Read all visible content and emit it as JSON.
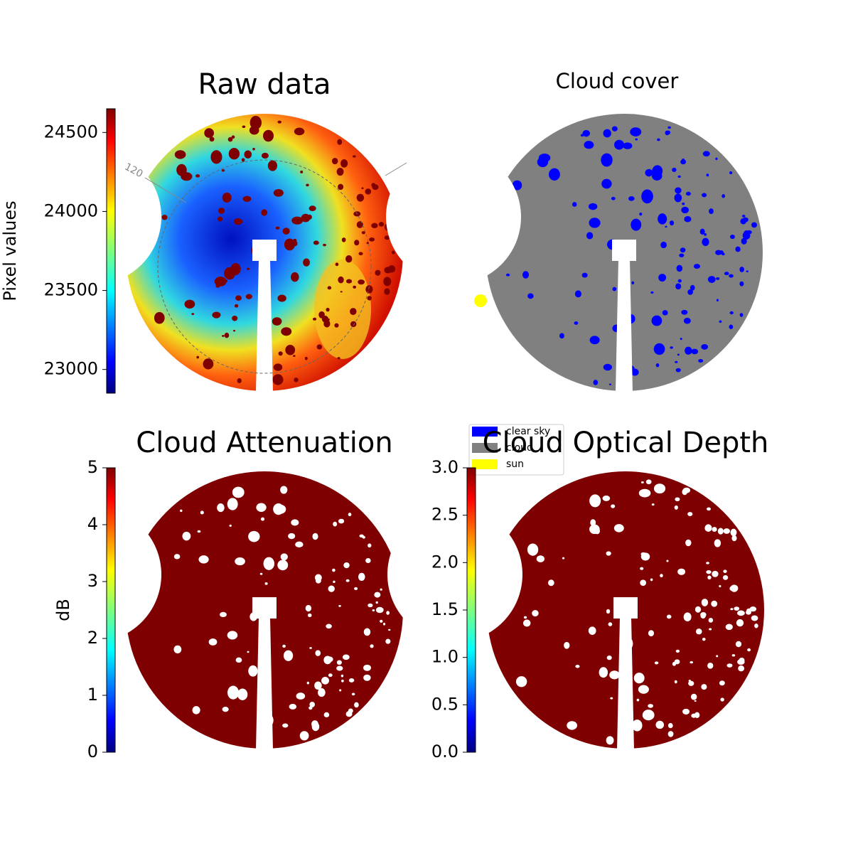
{
  "chart_data": [
    {
      "type": "image",
      "title": "Raw data",
      "colorbar_label": "Pixel values",
      "colormap": "jet",
      "ylim": [
        22850,
        24650
      ],
      "yticks": [
        23000,
        23500,
        24000,
        24500
      ],
      "annotations": [
        "120"
      ]
    },
    {
      "type": "image",
      "title": "Cloud cover",
      "legend": {
        "categories": [
          "clear sky",
          "cloud",
          "sun"
        ],
        "colors": [
          "#0000ff",
          "#808080",
          "#ffff00"
        ]
      }
    },
    {
      "type": "image",
      "title": "Cloud Attenuation",
      "colorbar_label": "dB",
      "colormap": "jet",
      "ylim": [
        0,
        5
      ],
      "yticks": [
        0,
        1,
        2,
        3,
        4,
        5
      ]
    },
    {
      "type": "image",
      "title": "Cloud Optical Depth",
      "colormap": "jet",
      "ylim": [
        0,
        3
      ],
      "yticks": [
        {
          "value": 0,
          "label": "0.0"
        },
        0.5,
        {
          "value": 1,
          "label": "1.0"
        },
        1.5,
        {
          "value": 2,
          "label": "2.0"
        },
        2.5,
        {
          "value": 3,
          "label": "3.0"
        }
      ]
    }
  ]
}
